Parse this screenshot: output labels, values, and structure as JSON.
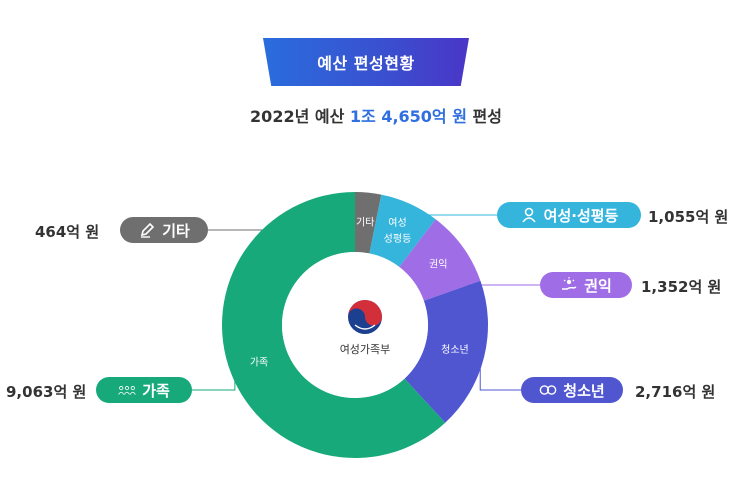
{
  "header": {
    "title": "예산 편성현황",
    "subtitle_pre": "2022년 예산 ",
    "subtitle_highlight": "1조 4,650억 원",
    "subtitle_post": " 편성"
  },
  "center": {
    "org_name": "여성가족부"
  },
  "colors": {
    "family": "#17a979",
    "youth": "#4f56d0",
    "rights": "#9f6ee6",
    "gender": "#35b4dc",
    "other": "#6f6f6f",
    "title_ribbon": "#3a4fcf",
    "highlight": "#2f6fe0"
  },
  "chart_data": {
    "type": "pie",
    "title": "예산 편성현황",
    "total_label": "1조 4,650억 원",
    "slices": [
      {
        "key": "other",
        "name": "기타",
        "value": 464,
        "amount_label": "464억 원",
        "legend_label": "기타",
        "icon": "pen-icon"
      },
      {
        "key": "gender",
        "name": "여성·성평등",
        "value": 1055,
        "amount_label": "1,055억 원",
        "legend_label": "여성·성평등",
        "ring_label": [
          "여성",
          "성평등"
        ],
        "icon": "person-icon"
      },
      {
        "key": "rights",
        "name": "권익",
        "value": 1352,
        "amount_label": "1,352억 원",
        "legend_label": "권익",
        "icon": "hand-care-icon"
      },
      {
        "key": "youth",
        "name": "청소년",
        "value": 2716,
        "amount_label": "2,716억 원",
        "legend_label": "청소년",
        "icon": "youth-faces-icon"
      },
      {
        "key": "family",
        "name": "가족",
        "value": 9063,
        "amount_label": "9,063억 원",
        "legend_label": "가족",
        "icon": "family-icon"
      }
    ]
  }
}
